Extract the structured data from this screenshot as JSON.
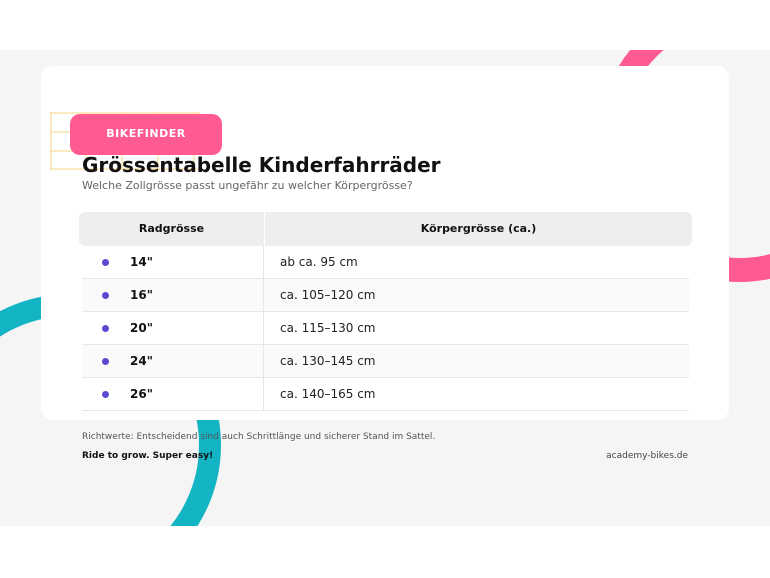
{
  "header": {
    "badge": "BIKEFINDER",
    "title": "Grössentabelle Kinderfahrräder",
    "subtitle": "Welche Zollgrösse passt ungefähr zu welcher Körpergrösse?"
  },
  "table": {
    "headers": [
      "Radgrösse",
      "Körpergrösse (ca.)"
    ],
    "rows": [
      {
        "wheel": "14\"",
        "height": "ab ca. 95 cm"
      },
      {
        "wheel": "16\"",
        "height": "ca. 105–120 cm"
      },
      {
        "wheel": "20\"",
        "height": "ca. 115–130 cm"
      },
      {
        "wheel": "24\"",
        "height": "ca. 130–145 cm"
      },
      {
        "wheel": "26\"",
        "height": "ca. 140–165 cm"
      }
    ]
  },
  "footer": {
    "note": "Richtwerte: Entscheidend sind auch Schrittlänge und sicherer Stand im Sattel.",
    "slogan": "Ride to grow. Super easy!",
    "site": "academy-bikes.de"
  },
  "colors": {
    "accent_pink": "#ff5a91",
    "accent_teal": "#13b5c4",
    "bullet": "#5a4ad1"
  }
}
